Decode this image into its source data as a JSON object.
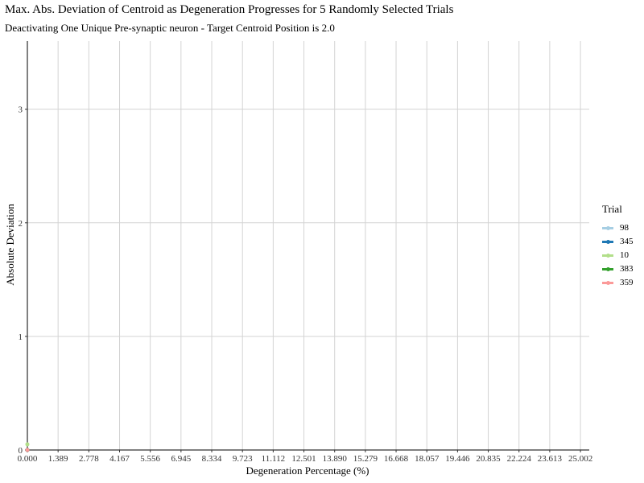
{
  "chart_data": {
    "type": "line",
    "title": "Max. Abs. Deviation of Centroid as Degeneration Progresses for 5 Randomly Selected Trials",
    "subtitle": "Deactivating One Unique Pre-synaptic neuron - Target Centroid Position is 2.0",
    "xlabel": "Degeneration Percentage (%)",
    "ylabel": "Absolute Deviation",
    "xlim": [
      0,
      25.4
    ],
    "ylim": [
      0,
      3.6
    ],
    "x_ticks": [
      0.0,
      1.389,
      2.778,
      4.167,
      5.556,
      6.945,
      8.334,
      9.723,
      11.112,
      12.501,
      13.89,
      15.279,
      16.668,
      18.057,
      19.446,
      20.835,
      22.224,
      23.613,
      25.002
    ],
    "x_tick_labels": [
      "0.000",
      "1.389",
      "2.778",
      "4.167",
      "5.556",
      "6.945",
      "8.334",
      "9.723",
      "11.112",
      "12.501",
      "13.890",
      "15.279",
      "16.668",
      "18.057",
      "19.446",
      "20.835",
      "22.224",
      "23.613",
      "25.002"
    ],
    "y_ticks": [
      0,
      1,
      2,
      3
    ],
    "y_tick_labels": [
      "0",
      "1",
      "2",
      "3"
    ],
    "grid": true,
    "legend": {
      "title": "Trial",
      "placement": "right"
    },
    "series": [
      {
        "name": "98",
        "color": "#a6cee3",
        "x": [
          0.0
        ],
        "y": [
          0.0
        ]
      },
      {
        "name": "345",
        "color": "#1f78b4",
        "x": [
          0.0
        ],
        "y": [
          0.0
        ]
      },
      {
        "name": "10",
        "color": "#b2df8a",
        "x": [
          0.0
        ],
        "y": [
          0.05
        ]
      },
      {
        "name": "383",
        "color": "#33a02c",
        "x": [
          0.0
        ],
        "y": [
          0.0
        ]
      },
      {
        "name": "359",
        "color": "#fb9a99",
        "x": [
          0.0
        ],
        "y": [
          0.0
        ]
      }
    ]
  }
}
